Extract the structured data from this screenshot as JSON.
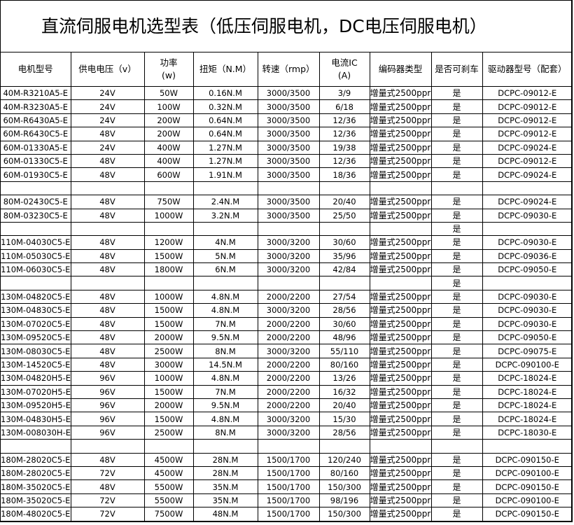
{
  "title": "直流伺服电机选型表（低压伺服电机，DC电压伺服电机）",
  "table": {
    "header": [
      [
        "电机型号"
      ],
      [
        "供电电压（v）"
      ],
      [
        "功率",
        "(w)"
      ],
      [
        "扭矩（N.M）"
      ],
      [
        "转速（rmp）"
      ],
      [
        "电流IC",
        "(A)"
      ],
      [
        "编码器类型"
      ],
      [
        "是否可刹车"
      ],
      [
        "驱动器型号（配套）"
      ]
    ],
    "rows": [
      [
        "40M-R3210A5-E",
        "24V",
        "50W",
        "0.16N.M",
        "3000/3500",
        "3/9",
        "增量式2500ppr",
        "是",
        "DCPC-09012-E"
      ],
      [
        "40M-R3230A5-E",
        "24V",
        "100W",
        "0.32N.M",
        "3000/3500",
        "6/18",
        "增量式2500ppr",
        "是",
        "DCPC-09012-E"
      ],
      [
        "60M-R6430A5-E",
        "24V",
        "200W",
        "0.64N.M",
        "3000/3500",
        "12/36",
        "增量式2500ppr",
        "是",
        "DCPC-09012-E"
      ],
      [
        "60M-R6430C5-E",
        "48V",
        "200W",
        "0.64N.M",
        "3000/3500",
        "12/36",
        "增量式2500ppr",
        "是",
        "DCPC-09012-E"
      ],
      [
        "60M-01330A5-E",
        "24V",
        "400W",
        "1.27N.M",
        "3000/3500",
        "19/38",
        "增量式2500ppr",
        "是",
        "DCPC-09024-E"
      ],
      [
        "60M-01330C5-E",
        "48V",
        "400W",
        "1.27N.M",
        "3000/3500",
        "12/36",
        "增量式2500ppr",
        "是",
        "DCPC-09012-E"
      ],
      [
        "60M-01930C5-E",
        "48V",
        "600W",
        "1.91N.M",
        "3000/3500",
        "18/36",
        "增量式2500ppr",
        "是",
        "DCPC-09024-E"
      ],
      [
        null,
        null,
        null,
        null,
        null,
        null,
        null,
        null,
        null
      ],
      [
        "80M-02430C5-E",
        "48V",
        "750W",
        "2.4N.M",
        "3000/3500",
        "20/40",
        "增量式2500ppr",
        "是",
        "DCPC-09024-E"
      ],
      [
        "80M-03230C5-E",
        "48V",
        "1000W",
        "3.2N.M",
        "3000/3500",
        "25/50",
        "增量式2500ppr",
        "是",
        "DCPC-09030-E"
      ],
      [
        null,
        null,
        null,
        null,
        null,
        null,
        null,
        "是",
        null
      ],
      [
        "110M-04030C5-E",
        "48V",
        "1200W",
        "4N.M",
        "3000/3200",
        "30/60",
        "增量式2500ppr",
        "是",
        "DCPC-09030-E"
      ],
      [
        "110M-05030C5-E",
        "48V",
        "1500W",
        "5N.M",
        "3000/3200",
        "35/96",
        "增量式2500ppr",
        "是",
        "DCPC-09036-E"
      ],
      [
        "110M-06030C5-E",
        "48V",
        "1800W",
        "6N.M",
        "3000/3200",
        "42/84",
        "增量式2500ppr",
        "是",
        "DCPC-09050-E"
      ],
      [
        null,
        null,
        null,
        null,
        null,
        null,
        null,
        "是",
        null
      ],
      [
        "130M-04820C5-E",
        "48V",
        "1000W",
        "4.8N.M",
        "2000/2200",
        "27/54",
        "增量式2500ppr",
        "是",
        "DCPC-09030-E"
      ],
      [
        "130M-04830C5-E",
        "48V",
        "1500W",
        "4.8N.M",
        "3000/3200",
        "28/56",
        "增量式2500ppr",
        "是",
        "DCPC-09030-E"
      ],
      [
        "130M-07020C5-E",
        "48V",
        "1500W",
        "7N.M",
        "2000/2200",
        "30/60",
        "增量式2500ppr",
        "是",
        "DCPC-09030-E"
      ],
      [
        "130M-09520C5-E",
        "48V",
        "2000W",
        "9.5N.M",
        "2000/2200",
        "48/96",
        "增量式2500ppr",
        "是",
        "DCPC-09050-E"
      ],
      [
        "130M-08030C5-E",
        "48V",
        "2500W",
        "8N.M",
        "3000/3200",
        "55/110",
        "增量式2500ppr",
        "是",
        "DCPC-09075-E"
      ],
      [
        "130M-14520C5-E",
        "48V",
        "3000W",
        "14.5N.M",
        "2000/2200",
        "80/160",
        "增量式2500ppr",
        "是",
        "DCPC-090100-E"
      ],
      [
        "130M-04820H5-E",
        "96V",
        "1000W",
        "4.8N.M",
        "2000/2200",
        "13/26",
        "增量式2500ppr",
        "是",
        "DCPC-18024-E"
      ],
      [
        "130M-07020H5-E",
        "96V",
        "1500W",
        "7N.M",
        "2000/2200",
        "16/32",
        "增量式2500ppr",
        "是",
        "DCPC-18024-E"
      ],
      [
        "130M-09520H5-E",
        "96V",
        "2000W",
        "9.5N.M",
        "2000/2200",
        "20/40",
        "增量式2500ppr",
        "是",
        "DCPC-18024-E"
      ],
      [
        "130M-04830H5-E",
        "96V",
        "1500W",
        "4.8N.M",
        "3000/3200",
        "15/30",
        "增量式2500ppr",
        "是",
        "DCPC-18024-E"
      ],
      [
        "130M-008030H-E",
        "96V",
        "2500W",
        "8N.M",
        "3000/3200",
        "28/56",
        "增量式2500ppr",
        "是",
        "DCPC-18030-E"
      ],
      [
        null,
        null,
        null,
        null,
        null,
        null,
        null,
        null,
        null
      ],
      [
        "180M-28020C5-E",
        "48V",
        "4500W",
        "28N.M",
        "1500/1700",
        "120/240",
        "增量式2500ppr",
        "是",
        "DCPC-090150-E"
      ],
      [
        "180M-28020C5-E",
        "72V",
        "4500W",
        "28N.M",
        "1500/1700",
        "80/160",
        "增量式2500ppr",
        "是",
        "DCPC-090100-E"
      ],
      [
        "180M-35020C5-E",
        "48V",
        "5500W",
        "35N.M",
        "1500/1700",
        "150/300",
        "增量式2500ppr",
        "是",
        "DCPC-090150-E"
      ],
      [
        "180M-35020C5-E",
        "72V",
        "5500W",
        "35N.M",
        "1500/1700",
        "98/196",
        "增量式2500ppr",
        "是",
        "DCPC-090100-E"
      ],
      [
        "180M-48020C5-E",
        "72V",
        "7500W",
        "48N.M",
        "1500/1700",
        "150/300",
        "增量式2500ppr",
        "是",
        "DCPC-090150-E"
      ]
    ]
  }
}
